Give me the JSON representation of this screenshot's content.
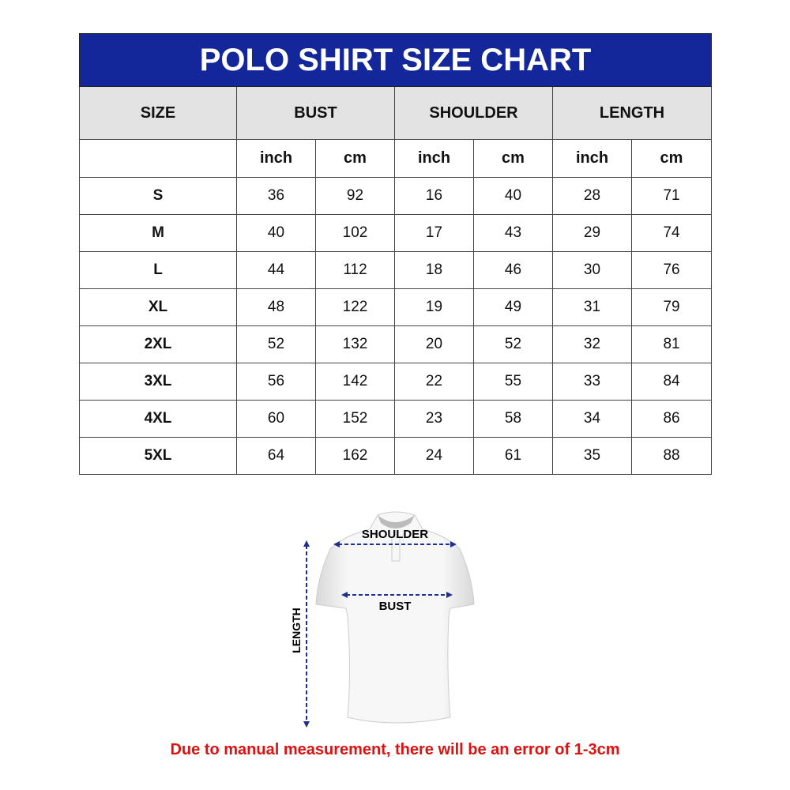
{
  "title": "POLO SHIRT SIZE CHART",
  "groups": [
    "SIZE",
    "BUST",
    "SHOULDER",
    "LENGTH"
  ],
  "units": [
    "inch",
    "cm",
    "inch",
    "cm",
    "inch",
    "cm"
  ],
  "rows": [
    [
      "S",
      "36",
      "92",
      "16",
      "40",
      "28",
      "71"
    ],
    [
      "M",
      "40",
      "102",
      "17",
      "43",
      "29",
      "74"
    ],
    [
      "L",
      "44",
      "112",
      "18",
      "46",
      "30",
      "76"
    ],
    [
      "XL",
      "48",
      "122",
      "19",
      "49",
      "31",
      "79"
    ],
    [
      "2XL",
      "52",
      "132",
      "20",
      "52",
      "32",
      "81"
    ],
    [
      "3XL",
      "56",
      "142",
      "22",
      "55",
      "33",
      "84"
    ],
    [
      "4XL",
      "60",
      "152",
      "23",
      "58",
      "34",
      "86"
    ],
    [
      "5XL",
      "64",
      "162",
      "24",
      "61",
      "35",
      "88"
    ]
  ],
  "diagram": {
    "shoulder": "SHOULDER",
    "bust": "BUST",
    "length": "LENGTH"
  },
  "note": "Due to manual measurement, there will be an error of 1-3cm",
  "colors": {
    "header": "#13279a",
    "note": "#e01010",
    "arrows": "#1f2f8f"
  }
}
